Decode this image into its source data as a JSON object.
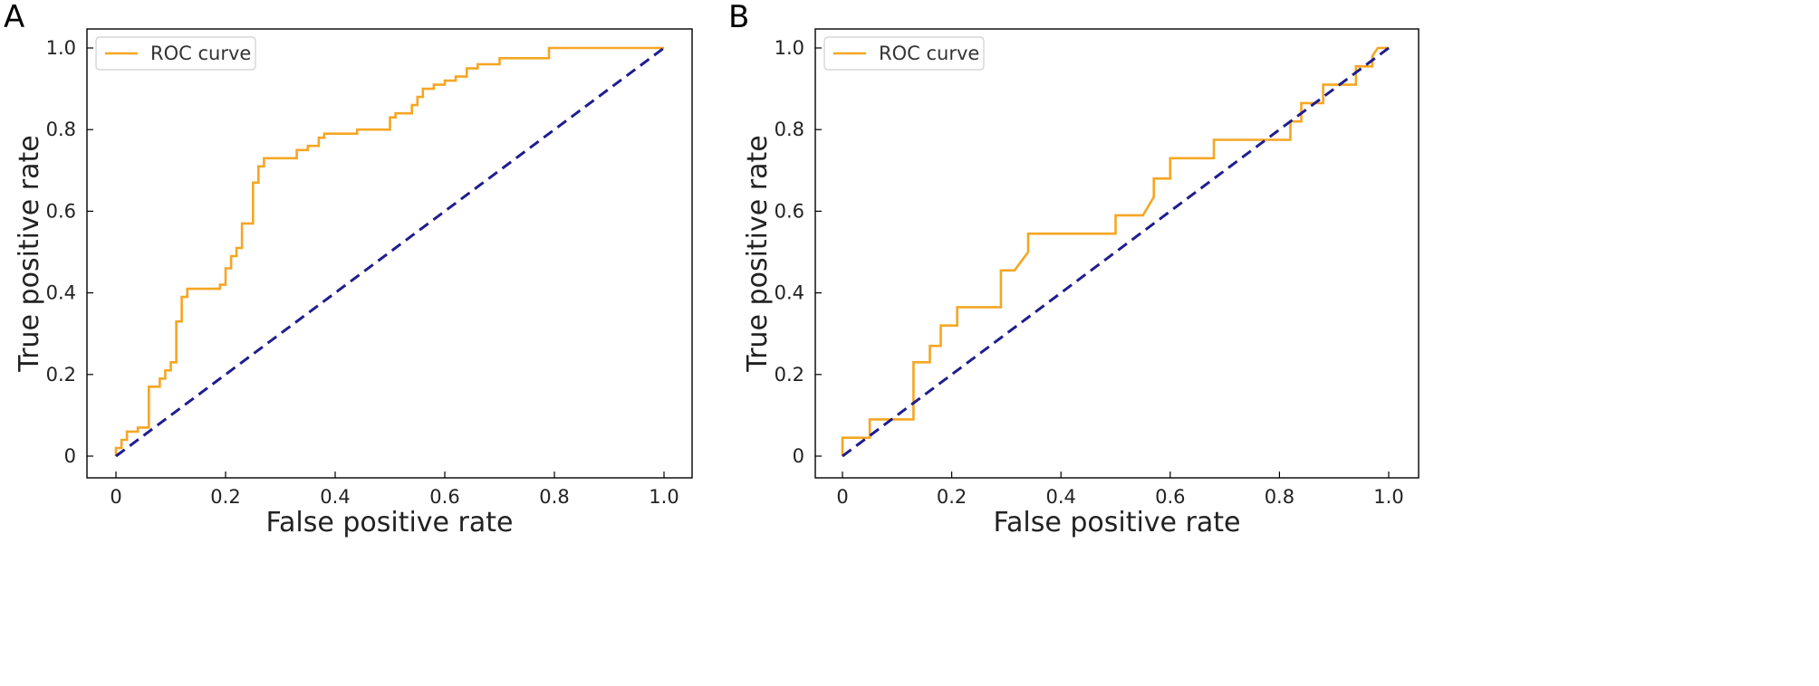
{
  "chart_data": [
    {
      "type": "line",
      "panel_label": "A",
      "xlabel": "False positive rate",
      "ylabel": "True positive rate",
      "xlim": [
        0,
        1.0
      ],
      "ylim": [
        0,
        1.0
      ],
      "xticks": [
        "0",
        "0.2",
        "0.4",
        "0.6",
        "0.8",
        "1.0"
      ],
      "yticks": [
        "0",
        "0.2",
        "0.4",
        "0.6",
        "0.8",
        "1.0"
      ],
      "grid": false,
      "legend_position": "top-left",
      "series": [
        {
          "name": "ROC curve",
          "color": "#f5a623",
          "points": [
            [
              0.0,
              0.0
            ],
            [
              0.0,
              0.02
            ],
            [
              0.01,
              0.02
            ],
            [
              0.01,
              0.04
            ],
            [
              0.02,
              0.04
            ],
            [
              0.02,
              0.06
            ],
            [
              0.04,
              0.06
            ],
            [
              0.04,
              0.07
            ],
            [
              0.06,
              0.07
            ],
            [
              0.06,
              0.17
            ],
            [
              0.08,
              0.17
            ],
            [
              0.08,
              0.19
            ],
            [
              0.09,
              0.19
            ],
            [
              0.09,
              0.21
            ],
            [
              0.1,
              0.21
            ],
            [
              0.1,
              0.23
            ],
            [
              0.11,
              0.23
            ],
            [
              0.11,
              0.33
            ],
            [
              0.12,
              0.33
            ],
            [
              0.12,
              0.39
            ],
            [
              0.13,
              0.39
            ],
            [
              0.13,
              0.41
            ],
            [
              0.19,
              0.41
            ],
            [
              0.19,
              0.42
            ],
            [
              0.2,
              0.42
            ],
            [
              0.2,
              0.46
            ],
            [
              0.21,
              0.46
            ],
            [
              0.21,
              0.49
            ],
            [
              0.22,
              0.49
            ],
            [
              0.22,
              0.51
            ],
            [
              0.23,
              0.51
            ],
            [
              0.23,
              0.57
            ],
            [
              0.25,
              0.57
            ],
            [
              0.25,
              0.67
            ],
            [
              0.26,
              0.67
            ],
            [
              0.26,
              0.71
            ],
            [
              0.27,
              0.71
            ],
            [
              0.27,
              0.73
            ],
            [
              0.33,
              0.73
            ],
            [
              0.33,
              0.75
            ],
            [
              0.35,
              0.75
            ],
            [
              0.35,
              0.76
            ],
            [
              0.37,
              0.76
            ],
            [
              0.37,
              0.78
            ],
            [
              0.38,
              0.78
            ],
            [
              0.38,
              0.79
            ],
            [
              0.44,
              0.79
            ],
            [
              0.44,
              0.8
            ],
            [
              0.5,
              0.8
            ],
            [
              0.5,
              0.83
            ],
            [
              0.51,
              0.83
            ],
            [
              0.51,
              0.84
            ],
            [
              0.54,
              0.84
            ],
            [
              0.54,
              0.86
            ],
            [
              0.55,
              0.86
            ],
            [
              0.55,
              0.88
            ],
            [
              0.56,
              0.88
            ],
            [
              0.56,
              0.9
            ],
            [
              0.58,
              0.9
            ],
            [
              0.58,
              0.91
            ],
            [
              0.6,
              0.91
            ],
            [
              0.6,
              0.92
            ],
            [
              0.62,
              0.92
            ],
            [
              0.62,
              0.93
            ],
            [
              0.64,
              0.93
            ],
            [
              0.64,
              0.95
            ],
            [
              0.66,
              0.95
            ],
            [
              0.66,
              0.96
            ],
            [
              0.7,
              0.96
            ],
            [
              0.7,
              0.975
            ],
            [
              0.79,
              0.975
            ],
            [
              0.79,
              1.0
            ],
            [
              1.0,
              1.0
            ]
          ]
        },
        {
          "name": "",
          "color": "#1f1d8f",
          "dashed": true,
          "points": [
            [
              0,
              0
            ],
            [
              1.0,
              1.0
            ]
          ]
        }
      ]
    },
    {
      "type": "line",
      "panel_label": "B",
      "xlabel": "False positive rate",
      "ylabel": "True positive rate",
      "xlim": [
        0,
        1.0
      ],
      "ylim": [
        0,
        1.0
      ],
      "xticks": [
        "0",
        "0.2",
        "0.4",
        "0.6",
        "0.8",
        "1.0"
      ],
      "yticks": [
        "0",
        "0.2",
        "0.4",
        "0.6",
        "0.8",
        "1.0"
      ],
      "grid": false,
      "legend_position": "top-left",
      "series": [
        {
          "name": "ROC curve",
          "color": "#f5a623",
          "points": [
            [
              0.0,
              0.0
            ],
            [
              0.0,
              0.045
            ],
            [
              0.05,
              0.045
            ],
            [
              0.05,
              0.09
            ],
            [
              0.13,
              0.09
            ],
            [
              0.13,
              0.23
            ],
            [
              0.16,
              0.23
            ],
            [
              0.16,
              0.27
            ],
            [
              0.18,
              0.27
            ],
            [
              0.18,
              0.32
            ],
            [
              0.21,
              0.32
            ],
            [
              0.21,
              0.365
            ],
            [
              0.29,
              0.365
            ],
            [
              0.29,
              0.455
            ],
            [
              0.315,
              0.455
            ],
            [
              0.34,
              0.5
            ],
            [
              0.34,
              0.545
            ],
            [
              0.5,
              0.545
            ],
            [
              0.5,
              0.59
            ],
            [
              0.55,
              0.59
            ],
            [
              0.57,
              0.635
            ],
            [
              0.57,
              0.68
            ],
            [
              0.6,
              0.68
            ],
            [
              0.6,
              0.73
            ],
            [
              0.68,
              0.73
            ],
            [
              0.68,
              0.775
            ],
            [
              0.82,
              0.775
            ],
            [
              0.82,
              0.82
            ],
            [
              0.84,
              0.82
            ],
            [
              0.84,
              0.865
            ],
            [
              0.88,
              0.865
            ],
            [
              0.88,
              0.91
            ],
            [
              0.94,
              0.91
            ],
            [
              0.94,
              0.955
            ],
            [
              0.97,
              0.955
            ],
            [
              0.97,
              0.98
            ],
            [
              0.98,
              1.0
            ],
            [
              1.0,
              1.0
            ]
          ]
        },
        {
          "name": "",
          "color": "#1f1d8f",
          "dashed": true,
          "points": [
            [
              0,
              0
            ],
            [
              1.0,
              1.0
            ]
          ]
        }
      ]
    }
  ]
}
